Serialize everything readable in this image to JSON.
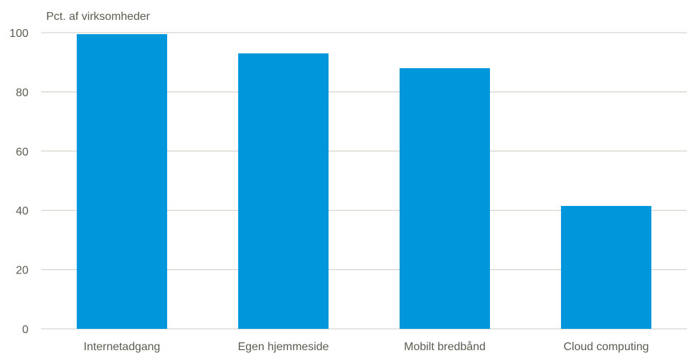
{
  "chart_data": {
    "type": "bar",
    "title": "",
    "xlabel": "",
    "ylabel": "Pct. af virksomheder",
    "ylim": [
      0,
      100
    ],
    "yticks": [
      0,
      20,
      40,
      60,
      80,
      100
    ],
    "grid": true,
    "categories": [
      "Internetadgang",
      "Egen hjemmeside",
      "Mobilt bredbånd",
      "Cloud computing"
    ],
    "values": [
      99.5,
      93,
      88,
      41.5
    ],
    "colors": {
      "bar": "#0096db",
      "grid": "#c9c9c0",
      "text": "#5b5b4f"
    }
  }
}
